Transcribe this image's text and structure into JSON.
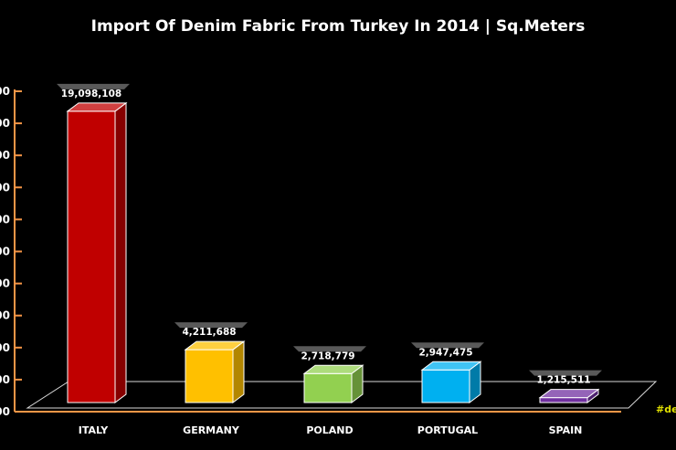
{
  "chart_data": {
    "type": "bar",
    "title": "Import Of Denim Fabric From Turkey In 2014 | Sq.Meters",
    "categories": [
      "ITALY",
      "GERMANY",
      "POLAND",
      "PORTUGAL",
      "SPAIN"
    ],
    "values": [
      19098108,
      4211688,
      2718779,
      2947475,
      1215511
    ],
    "value_labels": [
      "19,098,108",
      "4,211,688",
      "2,718,779",
      "2,947,475",
      "1,215,511"
    ],
    "colors": [
      "#c00000",
      "#ffc000",
      "#92d050",
      "#00b0f0",
      "#7030a0"
    ],
    "ylim": [
      0,
      20000000
    ],
    "yticks": [
      0,
      2000000,
      4000000,
      6000000,
      8000000,
      10000000,
      12000000,
      14000000,
      16000000,
      18000000,
      20000000
    ],
    "ytick_labels": [
      "00",
      "00",
      "00",
      "00",
      "00",
      "00",
      "00",
      "00",
      "00",
      "00",
      "00"
    ],
    "grid": false,
    "legend": "none",
    "bar_style": "3d",
    "axis_color": "#f79646",
    "watermark": "#de"
  }
}
